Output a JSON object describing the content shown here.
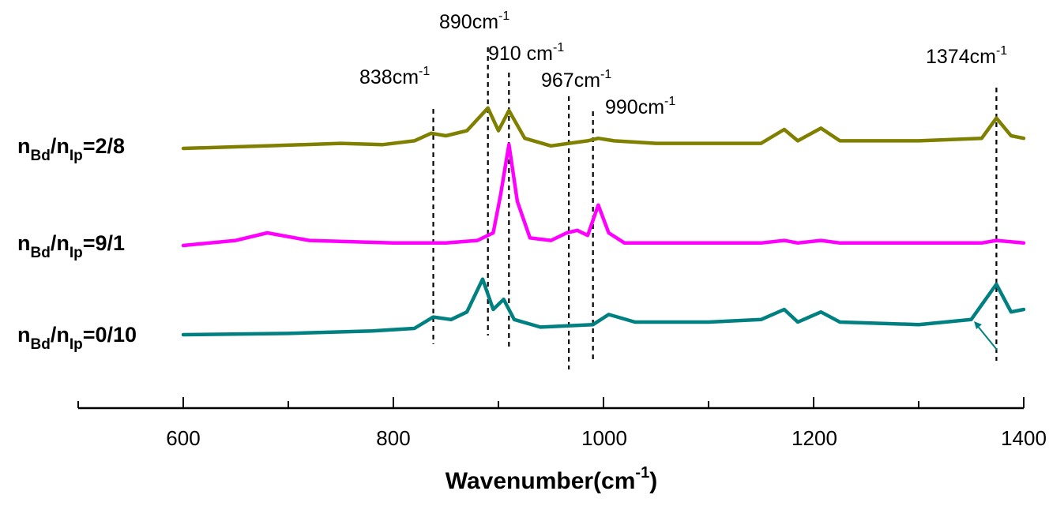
{
  "chart_data": {
    "type": "line",
    "xlabel": "Wavenumber(cm",
    "xlabel_sup": "-1",
    "xlabel_close": ")",
    "xlim": [
      500,
      1400
    ],
    "xticks": [
      600,
      800,
      1000,
      1200,
      1400
    ],
    "grid": false,
    "series": [
      {
        "name_parts": [
          "n",
          "Bd",
          "/n",
          "Ip",
          "=2/8"
        ],
        "color": "#808000",
        "points": [
          [
            600,
            0.0
          ],
          [
            680,
            0.02
          ],
          [
            750,
            0.04
          ],
          [
            790,
            0.03
          ],
          [
            820,
            0.06
          ],
          [
            836,
            0.12
          ],
          [
            850,
            0.1
          ],
          [
            870,
            0.14
          ],
          [
            890,
            0.32
          ],
          [
            900,
            0.14
          ],
          [
            910,
            0.3
          ],
          [
            925,
            0.08
          ],
          [
            950,
            0.02
          ],
          [
            967,
            0.04
          ],
          [
            985,
            0.06
          ],
          [
            995,
            0.08
          ],
          [
            1010,
            0.06
          ],
          [
            1050,
            0.04
          ],
          [
            1150,
            0.04
          ],
          [
            1172,
            0.15
          ],
          [
            1185,
            0.06
          ],
          [
            1207,
            0.16
          ],
          [
            1225,
            0.06
          ],
          [
            1300,
            0.06
          ],
          [
            1360,
            0.08
          ],
          [
            1374,
            0.24
          ],
          [
            1388,
            0.1
          ],
          [
            1400,
            0.08
          ]
        ]
      },
      {
        "name_parts": [
          "n",
          "Bd",
          "/n",
          "Ip",
          "=9/1"
        ],
        "color": "#ff00ff",
        "points": [
          [
            600,
            0.0
          ],
          [
            650,
            0.04
          ],
          [
            680,
            0.1
          ],
          [
            720,
            0.04
          ],
          [
            800,
            0.02
          ],
          [
            850,
            0.02
          ],
          [
            880,
            0.04
          ],
          [
            895,
            0.1
          ],
          [
            902,
            0.4
          ],
          [
            910,
            0.8
          ],
          [
            918,
            0.35
          ],
          [
            930,
            0.06
          ],
          [
            950,
            0.04
          ],
          [
            965,
            0.1
          ],
          [
            975,
            0.12
          ],
          [
            985,
            0.08
          ],
          [
            995,
            0.32
          ],
          [
            1005,
            0.1
          ],
          [
            1020,
            0.02
          ],
          [
            1150,
            0.02
          ],
          [
            1172,
            0.04
          ],
          [
            1185,
            0.02
          ],
          [
            1207,
            0.04
          ],
          [
            1225,
            0.02
          ],
          [
            1360,
            0.02
          ],
          [
            1374,
            0.04
          ],
          [
            1400,
            0.02
          ]
        ]
      },
      {
        "name_parts": [
          "n",
          "Bd",
          "/n",
          "Ip",
          "=0/10"
        ],
        "color": "#008080",
        "points": [
          [
            600,
            0.0
          ],
          [
            700,
            0.01
          ],
          [
            780,
            0.03
          ],
          [
            820,
            0.05
          ],
          [
            838,
            0.14
          ],
          [
            855,
            0.12
          ],
          [
            870,
            0.18
          ],
          [
            885,
            0.44
          ],
          [
            895,
            0.2
          ],
          [
            905,
            0.28
          ],
          [
            915,
            0.12
          ],
          [
            940,
            0.06
          ],
          [
            990,
            0.08
          ],
          [
            1005,
            0.16
          ],
          [
            1030,
            0.1
          ],
          [
            1100,
            0.1
          ],
          [
            1150,
            0.12
          ],
          [
            1172,
            0.2
          ],
          [
            1185,
            0.1
          ],
          [
            1207,
            0.18
          ],
          [
            1225,
            0.1
          ],
          [
            1300,
            0.08
          ],
          [
            1350,
            0.12
          ],
          [
            1374,
            0.4
          ],
          [
            1388,
            0.18
          ],
          [
            1400,
            0.2
          ]
        ]
      }
    ],
    "annotations": [
      {
        "x": 838,
        "text": "838cm",
        "sup": "-1"
      },
      {
        "x": 890,
        "text": "890cm",
        "sup": "-1"
      },
      {
        "x": 910,
        "text": "910 cm",
        "sup": "-1"
      },
      {
        "x": 967,
        "text": "967cm",
        "sup": "-1"
      },
      {
        "x": 990,
        "text": "990cm",
        "sup": "-1"
      },
      {
        "x": 1374,
        "text": "1374cm",
        "sup": "-1"
      }
    ]
  }
}
